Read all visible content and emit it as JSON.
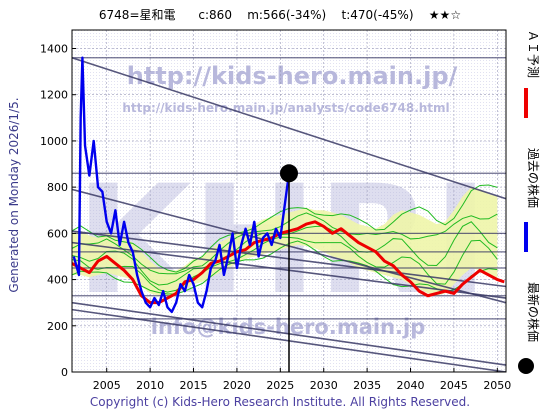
{
  "header": {
    "code_name": "6748=星和電",
    "close": "c:860",
    "max": "m:566(-34%)",
    "target": "t:470(-45%)",
    "stars": "★★☆"
  },
  "watermarks": {
    "url": "http://kids-hero.main.jp/",
    "analysis_url": "http://kids-hero.main.jp/analysts/code6748.html",
    "logo": "KHRI",
    "email": "info@kids-hero.main.jp"
  },
  "side_caption": "Generated on Monday 2026/1/5.",
  "legend": {
    "ai": "ＡＩ予測",
    "past": "過去の株価",
    "latest": "最新の株価"
  },
  "colors": {
    "past": "#0000ee",
    "ai": "#ee0000",
    "latest": "#000000",
    "band_fill": "#eef5a8",
    "band_green": "#22bb22",
    "trend": "#3a3a66",
    "watermark": "#b8b8dc"
  },
  "footer": "Copyright (c) Kids-Hero Research Institute. All Rights Reserved.",
  "chart_data": {
    "type": "line",
    "xlim": [
      2001,
      2051
    ],
    "ylim": [
      0,
      1480
    ],
    "x_ticks": [
      2005,
      2010,
      2015,
      2020,
      2025,
      2030,
      2035,
      2040,
      2045,
      2050
    ],
    "y_ticks": [
      0,
      200,
      400,
      600,
      800,
      1000,
      1200,
      1400
    ],
    "grid": true,
    "latest": {
      "x": 2026.0,
      "y": 860
    },
    "series": [
      {
        "name": "過去の株価",
        "points": [
          [
            2001.2,
            500
          ],
          [
            2001.8,
            420
          ],
          [
            2002.0,
            1100
          ],
          [
            2002.2,
            1360
          ],
          [
            2002.5,
            980
          ],
          [
            2003.0,
            850
          ],
          [
            2003.5,
            1000
          ],
          [
            2004.0,
            800
          ],
          [
            2004.5,
            780
          ],
          [
            2005.0,
            650
          ],
          [
            2005.5,
            600
          ],
          [
            2006.0,
            700
          ],
          [
            2006.5,
            550
          ],
          [
            2007.0,
            650
          ],
          [
            2007.5,
            560
          ],
          [
            2008.0,
            520
          ],
          [
            2008.5,
            420
          ],
          [
            2009.0,
            350
          ],
          [
            2009.5,
            300
          ],
          [
            2010.0,
            280
          ],
          [
            2010.5,
            320
          ],
          [
            2011.0,
            290
          ],
          [
            2011.5,
            350
          ],
          [
            2012.0,
            280
          ],
          [
            2012.5,
            260
          ],
          [
            2013.0,
            300
          ],
          [
            2013.5,
            380
          ],
          [
            2014.0,
            350
          ],
          [
            2014.5,
            420
          ],
          [
            2015.0,
            380
          ],
          [
            2015.5,
            300
          ],
          [
            2016.0,
            280
          ],
          [
            2016.5,
            350
          ],
          [
            2017.0,
            450
          ],
          [
            2017.5,
            480
          ],
          [
            2018.0,
            550
          ],
          [
            2018.5,
            420
          ],
          [
            2019.0,
            500
          ],
          [
            2019.5,
            600
          ],
          [
            2020.0,
            450
          ],
          [
            2020.5,
            550
          ],
          [
            2021.0,
            620
          ],
          [
            2021.5,
            550
          ],
          [
            2022.0,
            650
          ],
          [
            2022.5,
            500
          ],
          [
            2023.0,
            580
          ],
          [
            2023.5,
            600
          ],
          [
            2024.0,
            550
          ],
          [
            2024.5,
            620
          ],
          [
            2025.0,
            580
          ],
          [
            2025.5,
            720
          ],
          [
            2026.0,
            860
          ]
        ]
      },
      {
        "name": "ＡＩ予測",
        "points": [
          [
            2001,
            470
          ],
          [
            2002,
            450
          ],
          [
            2003,
            430
          ],
          [
            2004,
            480
          ],
          [
            2005,
            500
          ],
          [
            2006,
            470
          ],
          [
            2007,
            440
          ],
          [
            2008,
            400
          ],
          [
            2009,
            330
          ],
          [
            2010,
            300
          ],
          [
            2011,
            300
          ],
          [
            2012,
            320
          ],
          [
            2013,
            340
          ],
          [
            2014,
            390
          ],
          [
            2015,
            400
          ],
          [
            2016,
            430
          ],
          [
            2017,
            470
          ],
          [
            2018,
            480
          ],
          [
            2019,
            500
          ],
          [
            2020,
            520
          ],
          [
            2021,
            530
          ],
          [
            2022,
            560
          ],
          [
            2023,
            570
          ],
          [
            2024,
            580
          ],
          [
            2025,
            600
          ],
          [
            2026,
            610
          ],
          [
            2027,
            620
          ],
          [
            2028,
            640
          ],
          [
            2029,
            650
          ],
          [
            2030,
            630
          ],
          [
            2031,
            600
          ],
          [
            2032,
            620
          ],
          [
            2033,
            590
          ],
          [
            2034,
            560
          ],
          [
            2035,
            540
          ],
          [
            2036,
            520
          ],
          [
            2037,
            480
          ],
          [
            2038,
            460
          ],
          [
            2039,
            420
          ],
          [
            2040,
            390
          ],
          [
            2041,
            350
          ],
          [
            2042,
            330
          ],
          [
            2043,
            340
          ],
          [
            2044,
            350
          ],
          [
            2045,
            340
          ],
          [
            2046,
            380
          ],
          [
            2047,
            410
          ],
          [
            2048,
            440
          ],
          [
            2049,
            420
          ],
          [
            2050,
            400
          ],
          [
            2050.8,
            390
          ]
        ]
      }
    ],
    "band": {
      "start": 2001,
      "step": 1,
      "lower": [
        420,
        420,
        410,
        420,
        430,
        420,
        410,
        400,
        370,
        340,
        330,
        330,
        340,
        360,
        380,
        390,
        410,
        430,
        450,
        470,
        490,
        500,
        510,
        520,
        530,
        540,
        550,
        545,
        535,
        520,
        500,
        490,
        470,
        450,
        440,
        430,
        420,
        410,
        400,
        380,
        360,
        340,
        330,
        340,
        380,
        420,
        450,
        440,
        420,
        400
      ],
      "upper": [
        600,
        610,
        590,
        580,
        600,
        590,
        580,
        560,
        520,
        480,
        450,
        440,
        440,
        460,
        490,
        500,
        530,
        560,
        580,
        600,
        620,
        640,
        660,
        670,
        680,
        690,
        700,
        710,
        700,
        700,
        690,
        680,
        660,
        640,
        630,
        620,
        640,
        680,
        700,
        690,
        680,
        660,
        640,
        650,
        700,
        760,
        800,
        790,
        770,
        760
      ]
    },
    "trend_lines": [
      {
        "from": [
          2001,
          1360
        ],
        "to": [
          2051,
          750
        ]
      },
      {
        "from": [
          2001,
          790
        ],
        "to": [
          2051,
          300
        ]
      },
      {
        "from": [
          2001,
          610
        ],
        "to": [
          2051,
          370
        ]
      },
      {
        "from": [
          2001,
          560
        ],
        "to": [
          2051,
          320
        ]
      },
      {
        "from": [
          2001,
          300
        ],
        "to": [
          2051,
          30
        ]
      },
      {
        "from": [
          2001,
          270
        ],
        "to": [
          2051,
          0
        ]
      }
    ],
    "resistance_levels": [
      1360,
      860,
      600,
      520,
      450,
      330,
      230
    ]
  }
}
